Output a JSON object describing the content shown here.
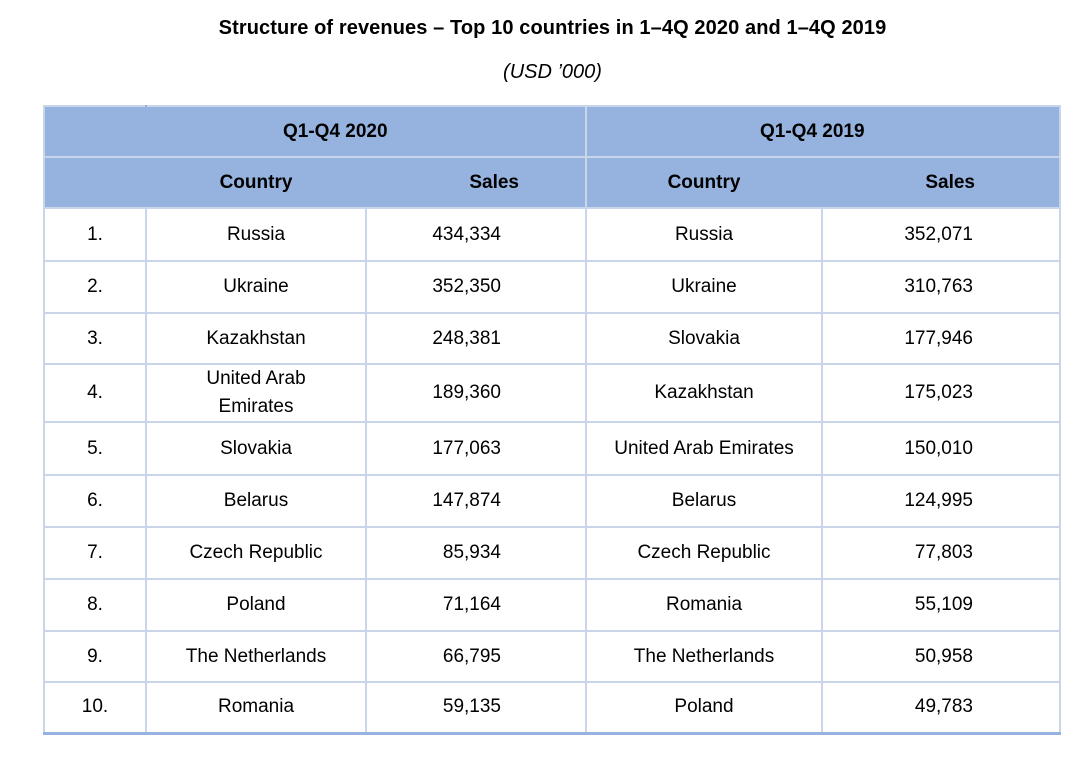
{
  "chart_data": {
    "type": "table",
    "title": "Structure of revenues – Top 10 countries in 1–4Q 2020 and 1–4Q 2019",
    "subtitle": "(USD ’000)",
    "groups": [
      "Q1-Q4 2020",
      "Q1-Q4 2019"
    ],
    "column_headers": {
      "country": "Country",
      "sales": "Sales"
    },
    "rows": [
      {
        "rank": "1.",
        "country_2020": "Russia",
        "sales_2020": "434,334",
        "country_2019": "Russia",
        "sales_2019": "352,071"
      },
      {
        "rank": "2.",
        "country_2020": "Ukraine",
        "sales_2020": "352,350",
        "country_2019": "Ukraine",
        "sales_2019": "310,763"
      },
      {
        "rank": "3.",
        "country_2020": "Kazakhstan",
        "sales_2020": "248,381",
        "country_2019": "Slovakia",
        "sales_2019": "177,946"
      },
      {
        "rank": "4.",
        "country_2020": "United Arab Emirates",
        "sales_2020": "189,360",
        "country_2019": "Kazakhstan",
        "sales_2019": "175,023"
      },
      {
        "rank": "5.",
        "country_2020": "Slovakia",
        "sales_2020": "177,063",
        "country_2019": "United Arab Emirates",
        "sales_2019": "150,010"
      },
      {
        "rank": "6.",
        "country_2020": "Belarus",
        "sales_2020": "147,874",
        "country_2019": "Belarus",
        "sales_2019": "124,995"
      },
      {
        "rank": "7.",
        "country_2020": "Czech Republic",
        "sales_2020": "85,934",
        "country_2019": "Czech Republic",
        "sales_2019": "77,803"
      },
      {
        "rank": "8.",
        "country_2020": "Poland",
        "sales_2020": "71,164",
        "country_2019": "Romania",
        "sales_2019": "55,109"
      },
      {
        "rank": "9.",
        "country_2020": "The Netherlands",
        "sales_2020": "66,795",
        "country_2019": "The Netherlands",
        "sales_2019": "50,958"
      },
      {
        "rank": "10.",
        "country_2020": "Romania",
        "sales_2020": "59,135",
        "country_2019": "Poland",
        "sales_2019": "49,783"
      }
    ],
    "colors": {
      "header_fill": "#95b3de",
      "grid_line": "#c9d5e8"
    }
  }
}
